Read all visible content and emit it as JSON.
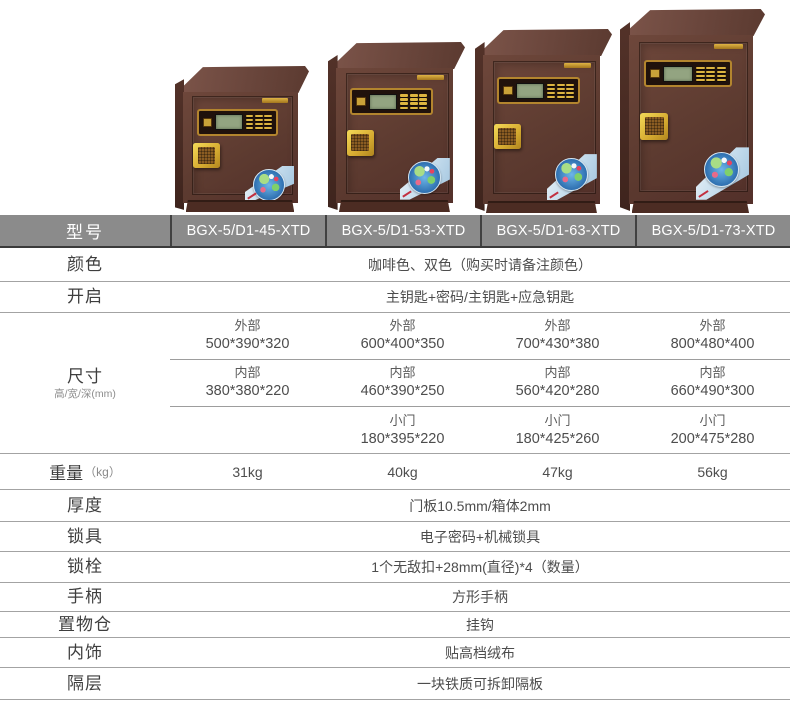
{
  "header": {
    "label": "型号",
    "models": [
      "BGX-5/D1-45-XTD",
      "BGX-5/D1-53-XTD",
      "BGX-5/D1-63-XTD",
      "BGX-5/D1-73-XTD"
    ]
  },
  "specs": {
    "color": {
      "label": "颜色",
      "value": "咖啡色、双色（购买时请备注颜色）"
    },
    "opening": {
      "label": "开启",
      "value": "主钥匙+密码/主钥匙+应急钥匙"
    },
    "dimensions": {
      "label": "尺寸",
      "sublabel": "高/宽/深(mm)",
      "rows": [
        {
          "name": "外部",
          "values": [
            "500*390*320",
            "600*400*350",
            "700*430*380",
            "800*480*400"
          ]
        },
        {
          "name": "内部",
          "values": [
            "380*380*220",
            "460*390*250",
            "560*420*280",
            "660*490*300"
          ]
        },
        {
          "name": "小门",
          "values": [
            "",
            "180*395*220",
            "180*425*260",
            "200*475*280"
          ]
        }
      ]
    },
    "weight": {
      "label": "重量",
      "unit": "（kg）",
      "values": [
        "31kg",
        "40kg",
        "47kg",
        "56kg"
      ]
    },
    "thickness": {
      "label": "厚度",
      "value": "门板10.5mm/箱体2mm"
    },
    "lock": {
      "label": "锁具",
      "value": "电子密码+机械锁具"
    },
    "bolt": {
      "label": "锁栓",
      "value": "1个无敌扣+28mm(直径)*4（数量）"
    },
    "handle": {
      "label": "手柄",
      "value": "方形手柄"
    },
    "storage": {
      "label": "置物仓",
      "value": "挂钩"
    },
    "interior": {
      "label": "内饰",
      "value": "贴高档绒布"
    },
    "shelf": {
      "label": "隔层",
      "value": "一块铁质可拆卸隔板"
    }
  },
  "colors": {
    "header_bg": "#8b8b8b",
    "safe_body": "#5d3b30",
    "gold_accent": "#d9b13c",
    "lcd_green": "#93a481"
  }
}
